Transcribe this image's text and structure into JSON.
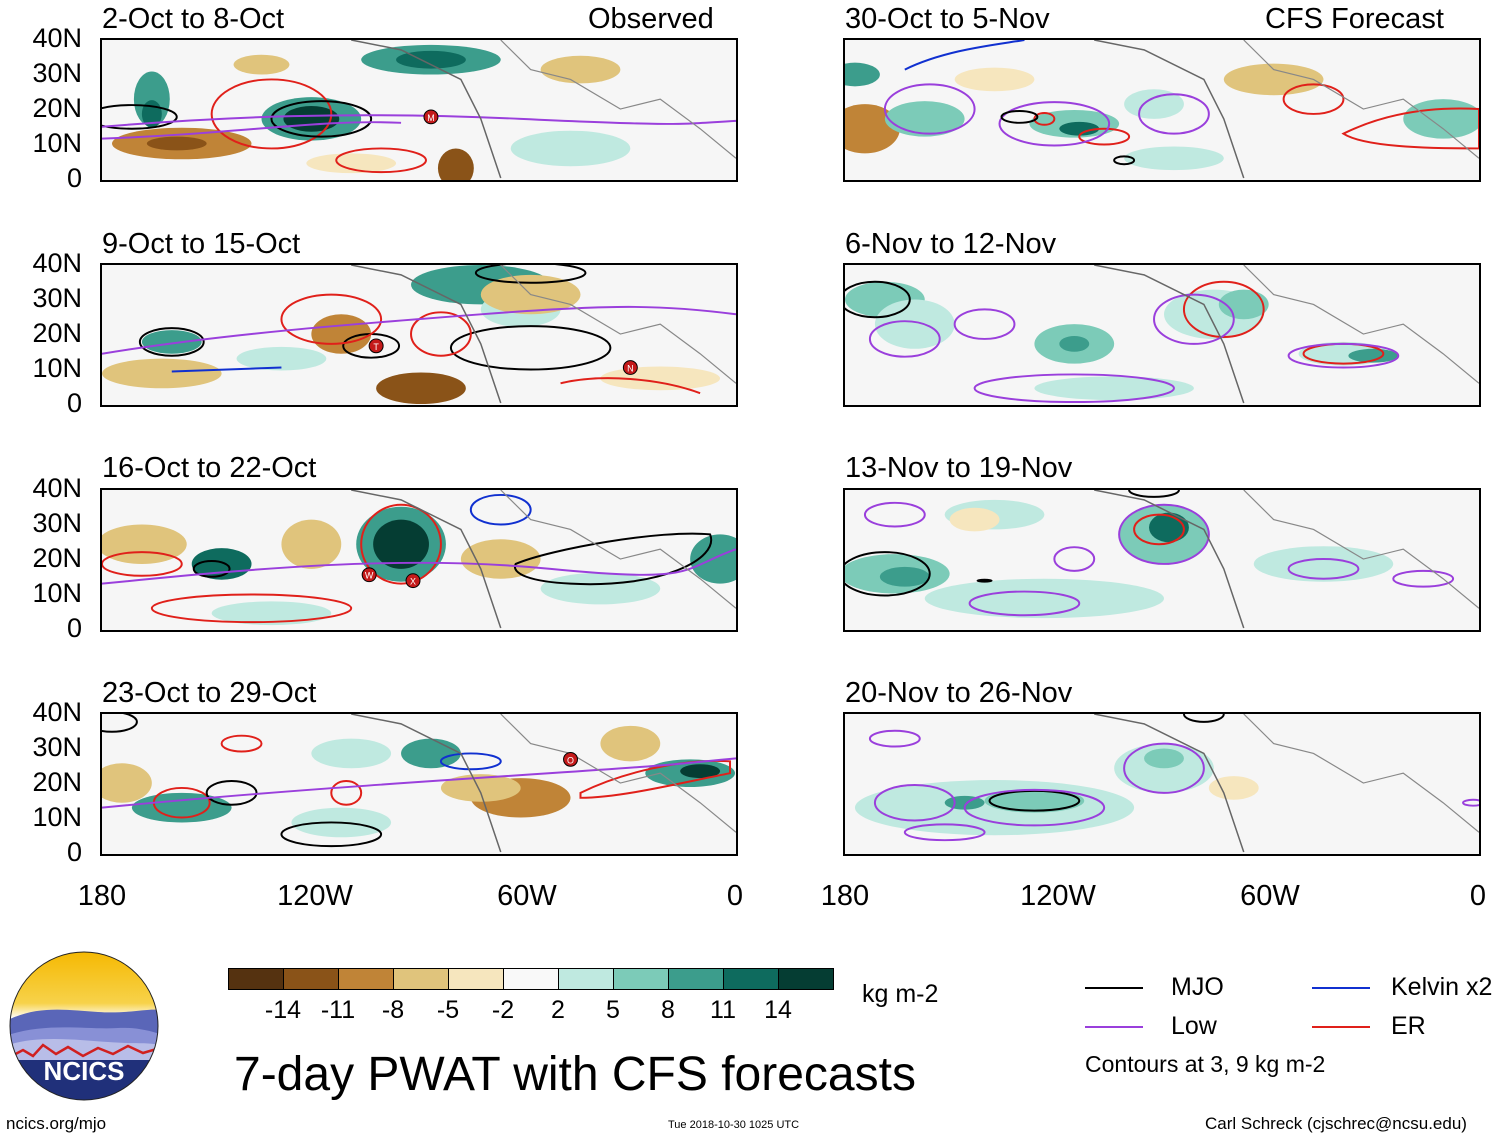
{
  "header": {
    "left_label": "Observed",
    "right_label": "CFS Forecast"
  },
  "panels": {
    "observed": [
      {
        "title": "2-Oct to 8-Oct"
      },
      {
        "title": "9-Oct to 15-Oct"
      },
      {
        "title": "16-Oct to 22-Oct"
      },
      {
        "title": "23-Oct to 29-Oct"
      }
    ],
    "forecast": [
      {
        "title": "30-Oct to 5-Nov"
      },
      {
        "title": "6-Nov to 12-Nov"
      },
      {
        "title": "13-Nov to 19-Nov"
      },
      {
        "title": "20-Nov to 26-Nov"
      }
    ]
  },
  "axes": {
    "lat_labels": [
      "40N",
      "30N",
      "20N",
      "10N",
      "0"
    ],
    "lon_labels": [
      "180",
      "120W",
      "60W",
      "0"
    ]
  },
  "colorbar": {
    "ticks": [
      "-14",
      "-11",
      "-8",
      "-5",
      "-2",
      "2",
      "5",
      "8",
      "11",
      "14"
    ],
    "units": "kg m-2",
    "colors": [
      "#553210",
      "#8a5318",
      "#c08437",
      "#e0c47c",
      "#f6e6be",
      "#f9f9f9",
      "#bfe9e0",
      "#7ccbb8",
      "#3c9d8c",
      "#0e6b5e",
      "#053d33"
    ]
  },
  "legend": {
    "items": [
      {
        "label": "MJO",
        "color": "#000000"
      },
      {
        "label": "Kelvin x2",
        "color": "#1030d0"
      },
      {
        "label": "Low",
        "color": "#9a3fdc"
      },
      {
        "label": "ER",
        "color": "#e0201a"
      }
    ],
    "note": "Contours at 3, 9 kg m-2"
  },
  "title": "7-day PWAT with CFS forecasts",
  "logo_text": "NCICS",
  "footer": {
    "url": "ncics.org/mjo",
    "timestamp": "Tue 2018-10-30 1025 UTC",
    "author": "Carl Schreck (cjschrec@ncsu.edu)"
  },
  "storm_markers": [
    {
      "letter": "M"
    },
    {
      "letter": "T"
    },
    {
      "letter": "N"
    },
    {
      "letter": "W"
    },
    {
      "letter": "X"
    },
    {
      "letter": "O"
    }
  ]
}
